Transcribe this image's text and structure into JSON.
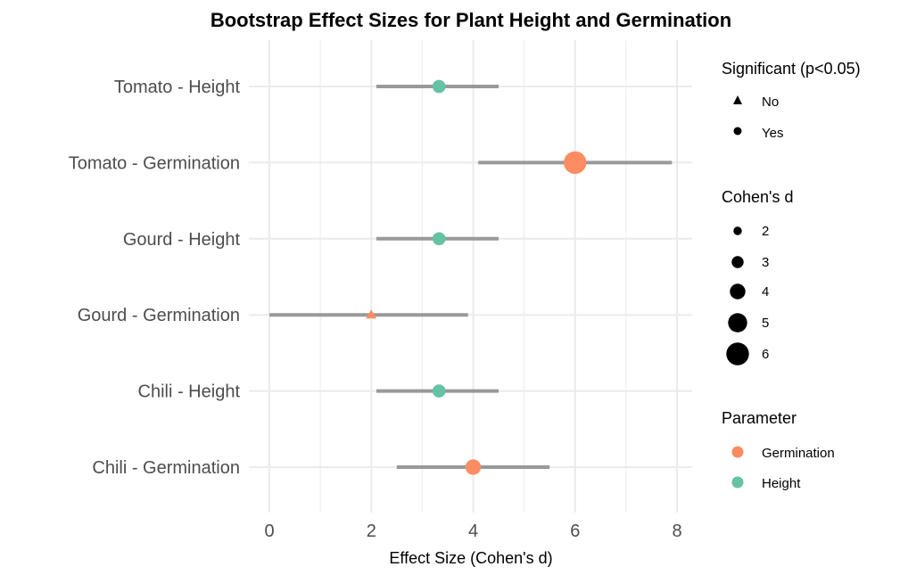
{
  "chart_data": {
    "type": "scatter",
    "subtype": "forest-plot",
    "title": "Bootstrap Effect Sizes for Plant Height and Germination",
    "xlabel": "Effect Size (Cohen's d)",
    "ylabel": "",
    "xlim": [
      -0.4,
      8.3
    ],
    "xticks": [
      0,
      2,
      4,
      6,
      8
    ],
    "grid": true,
    "categories": [
      "Tomato - Height",
      "Tomato - Germination",
      "Gourd - Height",
      "Gourd - Germination",
      "Chili - Height",
      "Chili - Germination"
    ],
    "points": [
      {
        "label": "Tomato - Height",
        "d": 3.33,
        "ci_low": 2.1,
        "ci_high": 4.5,
        "parameter": "Height",
        "significant": "Yes"
      },
      {
        "label": "Tomato - Germination",
        "d": 6.0,
        "ci_low": 4.1,
        "ci_high": 7.9,
        "parameter": "Germination",
        "significant": "Yes"
      },
      {
        "label": "Gourd - Height",
        "d": 3.33,
        "ci_low": 2.1,
        "ci_high": 4.5,
        "parameter": "Height",
        "significant": "Yes"
      },
      {
        "label": "Gourd - Germination",
        "d": 2.0,
        "ci_low": 0.0,
        "ci_high": 3.9,
        "parameter": "Germination",
        "significant": "No"
      },
      {
        "label": "Chili - Height",
        "d": 3.33,
        "ci_low": 2.1,
        "ci_high": 4.5,
        "parameter": "Height",
        "significant": "Yes"
      },
      {
        "label": "Chili - Germination",
        "d": 4.0,
        "ci_low": 2.5,
        "ci_high": 5.5,
        "parameter": "Germination",
        "significant": "Yes"
      }
    ],
    "colors": {
      "Germination": "#fc8d62",
      "Height": "#66c2a5",
      "ci_line": "#999999",
      "grid": "#ebebeb"
    },
    "legends": [
      {
        "title": "Significant (p<0.05)",
        "type": "shape",
        "entries": [
          {
            "label": "No",
            "shape": "triangle"
          },
          {
            "label": "Yes",
            "shape": "circle"
          }
        ]
      },
      {
        "title": "Cohen's d",
        "type": "size",
        "entries": [
          {
            "label": "2",
            "value": 2
          },
          {
            "label": "3",
            "value": 3
          },
          {
            "label": "4",
            "value": 4
          },
          {
            "label": "5",
            "value": 5
          },
          {
            "label": "6",
            "value": 6
          }
        ]
      },
      {
        "title": "Parameter",
        "type": "color",
        "entries": [
          {
            "label": "Germination",
            "color": "#fc8d62"
          },
          {
            "label": "Height",
            "color": "#66c2a5"
          }
        ]
      }
    ],
    "legend_position": "right"
  }
}
